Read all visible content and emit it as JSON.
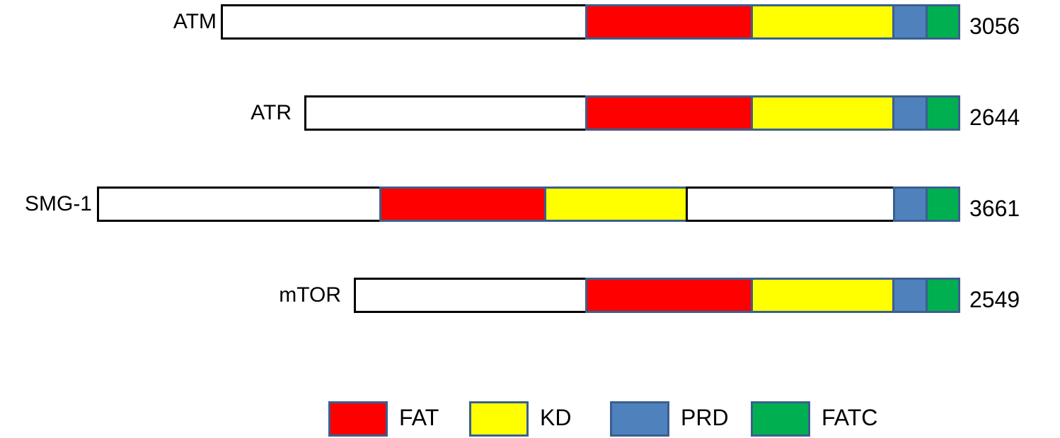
{
  "colors": {
    "FAT": "#ff0000",
    "KD": "#ffff00",
    "PRD": "#4f81bd",
    "FATC": "#00b050",
    "plain": "#ffffff",
    "domain_border": "#3a5f8f",
    "plain_border": "#000000"
  },
  "proteins": [
    {
      "name": "ATM",
      "length_label": "3056",
      "segments": [
        "plain",
        "FAT",
        "KD",
        "PRD",
        "FATC"
      ]
    },
    {
      "name": "ATR",
      "length_label": "2644",
      "segments": [
        "plain",
        "FAT",
        "KD",
        "PRD",
        "FATC"
      ]
    },
    {
      "name": "SMG-1",
      "length_label": "3661",
      "segments": [
        "plain",
        "FAT",
        "KD",
        "plain",
        "PRD",
        "FATC"
      ]
    },
    {
      "name": "mTOR",
      "length_label": "2549",
      "segments": [
        "plain",
        "FAT",
        "KD",
        "PRD",
        "FATC"
      ]
    }
  ],
  "legend": [
    {
      "label": "FAT",
      "key": "FAT"
    },
    {
      "label": "KD",
      "key": "KD"
    },
    {
      "label": "PRD",
      "key": "PRD"
    },
    {
      "label": "FATC",
      "key": "FATC"
    }
  ]
}
